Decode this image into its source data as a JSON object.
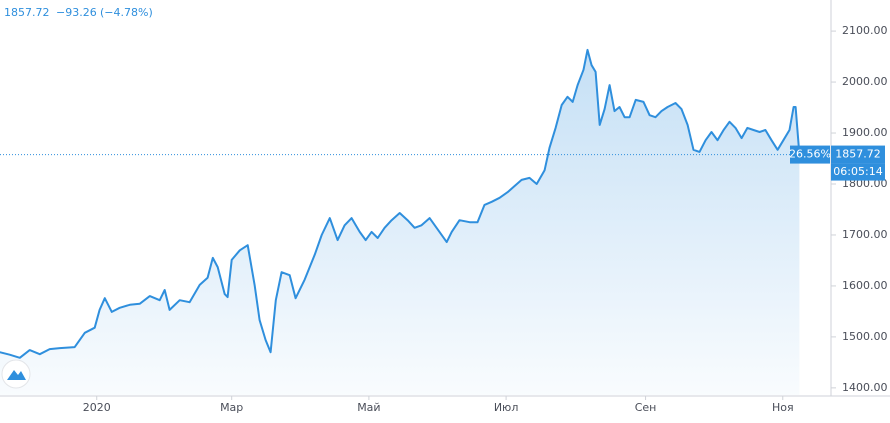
{
  "chart_data": {
    "type": "area",
    "header": {
      "change": "−93.26",
      "change_pct": "(−4.78%)"
    },
    "last_price": 1857.72,
    "last_pct_label": "26.56%",
    "countdown": "06:05:14",
    "color": "#2f8fdd",
    "grid": false,
    "xlim": [
      -43,
      326
    ],
    "ylim": [
      1386,
      2161
    ],
    "xticks": [
      {
        "value": 0,
        "label": "2020"
      },
      {
        "value": 60,
        "label": "Мар"
      },
      {
        "value": 121,
        "label": "Май"
      },
      {
        "value": 182,
        "label": "Июл"
      },
      {
        "value": 244,
        "label": "Сен"
      },
      {
        "value": 305,
        "label": "Ноя"
      }
    ],
    "yticks": [
      {
        "value": 1400,
        "label": "1400.00"
      },
      {
        "value": 1500,
        "label": "1500.00"
      },
      {
        "value": 1600,
        "label": "1600.00"
      },
      {
        "value": 1700,
        "label": "1700.00"
      },
      {
        "value": 1800,
        "label": "1800.00"
      },
      {
        "value": 1900,
        "label": "1900.00"
      },
      {
        "value": 2000,
        "label": "2000.00"
      },
      {
        "value": 2100,
        "label": "2100.00"
      }
    ],
    "x": [
      -43.1,
      -38.7,
      -34.2,
      -29.8,
      -25.3,
      -20.9,
      -16.4,
      -9.8,
      -5.3,
      -0.9,
      1.3,
      3.6,
      6.7,
      10.2,
      14.7,
      19.1,
      23.6,
      28,
      30.2,
      32.4,
      36.9,
      41.3,
      45.8,
      49.3,
      51.6,
      53.8,
      56.9,
      58.2,
      60,
      63.6,
      67.1,
      70.2,
      72.4,
      75.1,
      77.3,
      79.6,
      82.2,
      85.8,
      88.4,
      92.4,
      96.9,
      100,
      103.6,
      107.1,
      110.2,
      113.3,
      116.9,
      119.6,
      122.2,
      124.9,
      128,
      131.1,
      134.7,
      138.2,
      141.3,
      144.4,
      148,
      152.4,
      155.6,
      157.8,
      161.3,
      165.8,
      169.3,
      172.4,
      175.6,
      179.1,
      182.7,
      185.8,
      188.9,
      192.4,
      195.6,
      199.1,
      201.3,
      204,
      206.7,
      209.3,
      211.6,
      213.8,
      216.4,
      218.2,
      220,
      221.8,
      223.6,
      225.8,
      228,
      230.2,
      232.4,
      234.7,
      236.9,
      239.6,
      243.1,
      245.8,
      248.4,
      251.1,
      253.8,
      257.3,
      260,
      262.7,
      265.3,
      268,
      270.7,
      273.3,
      276,
      278.7,
      281.3,
      284,
      286.7,
      289.3,
      292,
      294.7,
      297.3,
      300,
      302.7,
      305.3,
      308,
      309.8,
      310.7,
      312.4
    ],
    "values": [
      1470,
      1465,
      1459,
      1474,
      1466,
      1476,
      1478,
      1480,
      1508,
      1518,
      1553,
      1576,
      1549,
      1557,
      1563,
      1565,
      1580,
      1572,
      1592,
      1553,
      1572,
      1568,
      1602,
      1616,
      1655,
      1637,
      1584,
      1578,
      1651,
      1670,
      1680,
      1602,
      1533,
      1494,
      1470,
      1572,
      1627,
      1621,
      1576,
      1612,
      1661,
      1700,
      1733,
      1690,
      1719,
      1733,
      1706,
      1690,
      1706,
      1694,
      1714,
      1729,
      1743,
      1729,
      1714,
      1719,
      1733,
      1706,
      1686,
      1706,
      1729,
      1725,
      1725,
      1759,
      1765,
      1773,
      1784,
      1796,
      1808,
      1812,
      1800,
      1827,
      1871,
      1910,
      1955,
      1971,
      1961,
      1994,
      2024,
      2063,
      2033,
      2020,
      1916,
      1947,
      1994,
      1943,
      1951,
      1931,
      1931,
      1965,
      1961,
      1935,
      1931,
      1943,
      1951,
      1959,
      1947,
      1916,
      1867,
      1863,
      1886,
      1902,
      1886,
      1906,
      1922,
      1910,
      1890,
      1910,
      1906,
      1902,
      1906,
      1886,
      1867,
      1886,
      1906,
      1951,
      1951,
      1857.72
    ]
  }
}
